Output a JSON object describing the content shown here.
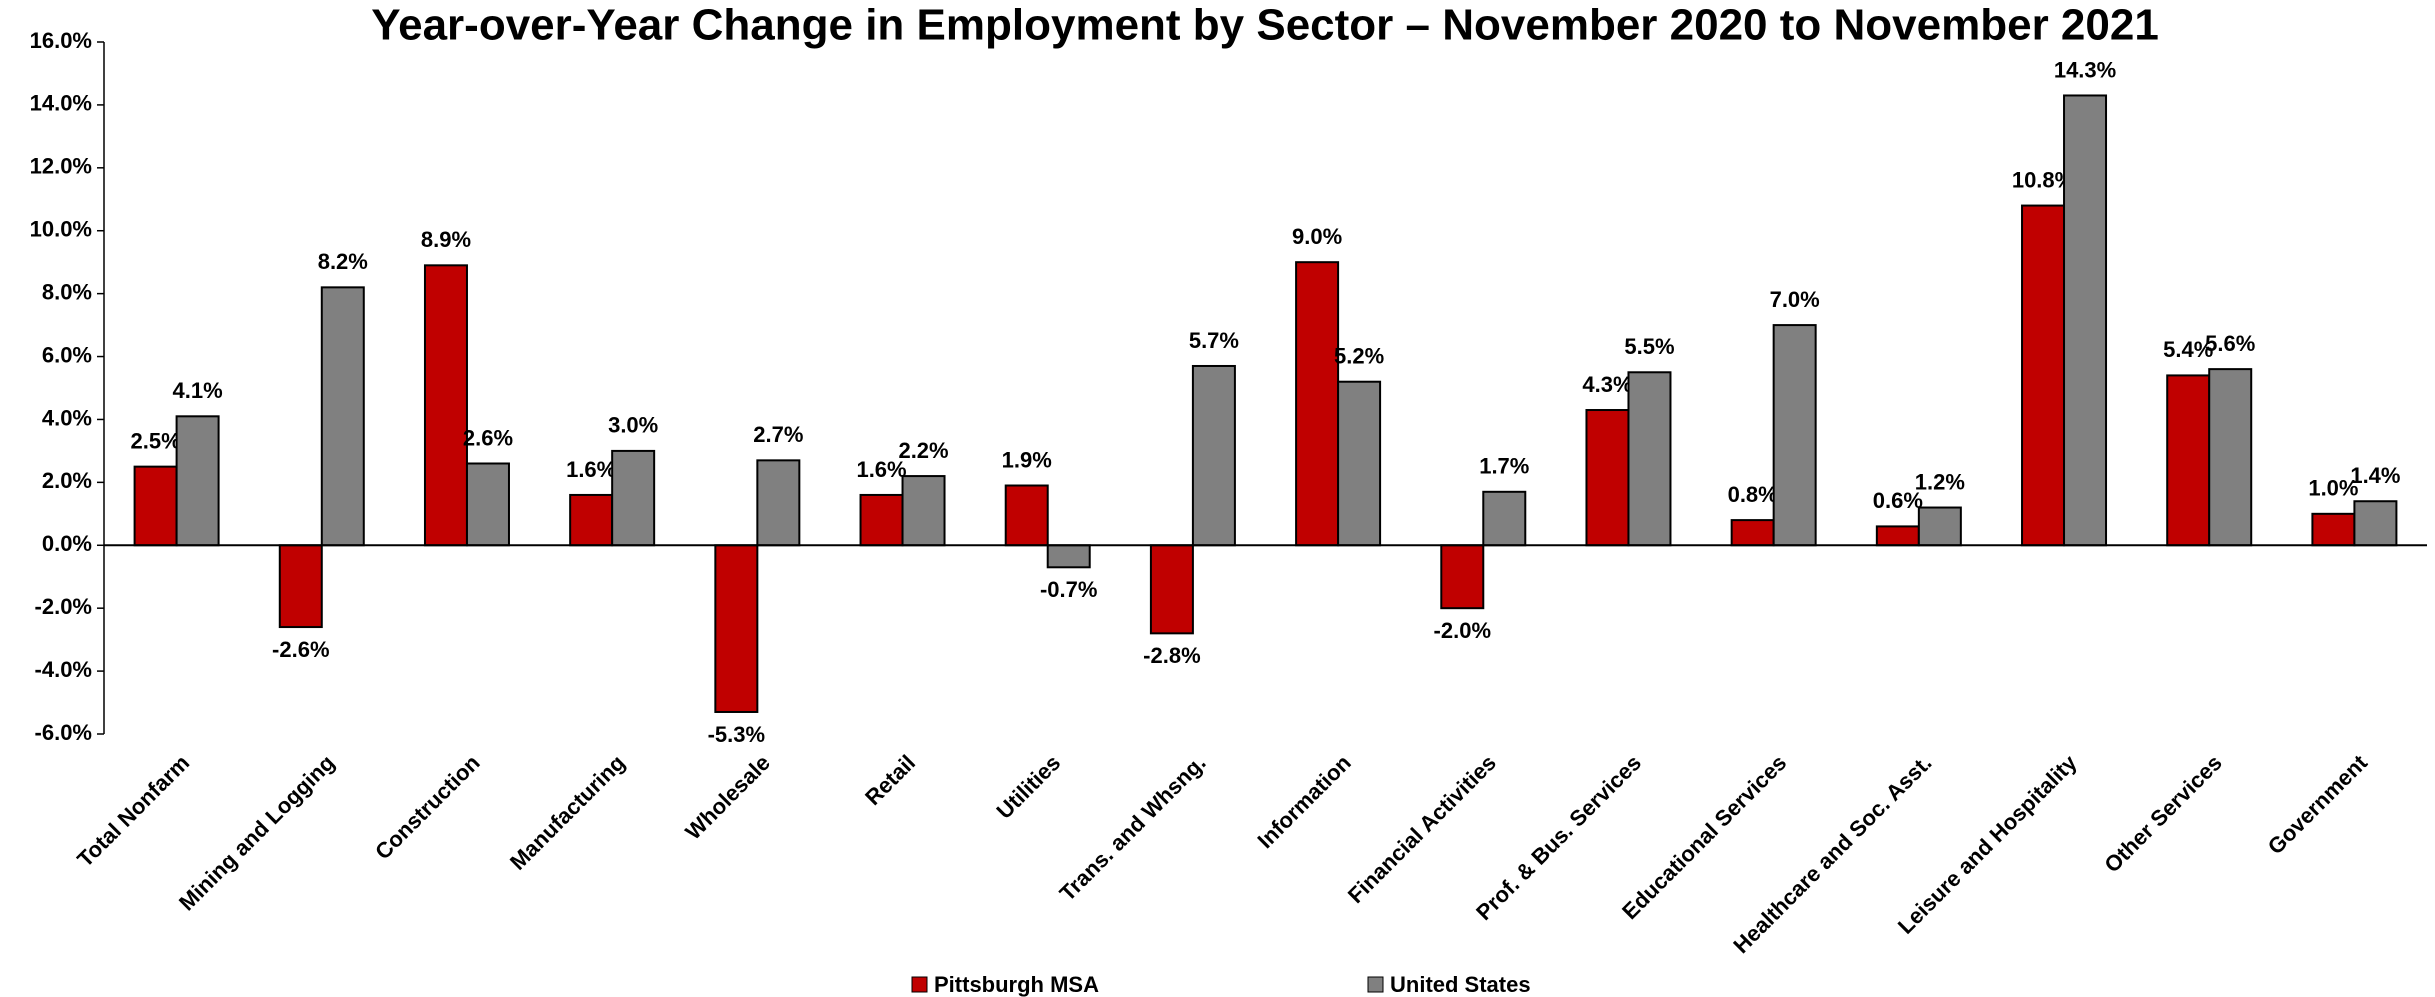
{
  "chart_data": {
    "type": "bar",
    "title": "Year-over-Year Change in Employment by Sector – November 2020 to November 2021",
    "categories": [
      "Total Nonfarm",
      "Mining and Logging",
      "Construction",
      "Manufacturing",
      "Wholesale",
      "Retail",
      "Utilities",
      "Trans. and Whsng.",
      "Information",
      "Financial Activities",
      "Prof. & Bus. Services",
      "Educational Services",
      "Healthcare and Soc. Asst.",
      "Leisure and Hospitality",
      "Other Services",
      "Government"
    ],
    "series": [
      {
        "name": "Pittsburgh MSA",
        "color": "#c00000",
        "values": [
          2.5,
          -2.6,
          8.9,
          1.6,
          -5.3,
          1.6,
          1.9,
          -2.8,
          9.0,
          -2.0,
          4.3,
          0.8,
          0.6,
          10.8,
          5.4,
          1.0
        ],
        "value_labels": [
          "2.5%",
          "-2.6%",
          "8.9%",
          "1.6%",
          "-5.3%",
          "1.6%",
          "1.9%",
          "-2.8%",
          "9.0%",
          "-2.0%",
          "4.3%",
          "0.8%",
          "0.6%",
          "10.8%",
          "5.4%",
          "1.0%"
        ]
      },
      {
        "name": "United States",
        "color": "#808080",
        "values": [
          4.1,
          8.2,
          2.6,
          3.0,
          2.7,
          2.2,
          -0.7,
          5.7,
          5.2,
          1.7,
          5.5,
          7.0,
          1.2,
          14.3,
          5.6,
          1.4
        ],
        "value_labels": [
          "4.1%",
          "8.2%",
          "2.6%",
          "3.0%",
          "2.7%",
          "2.2%",
          "-0.7%",
          "5.7%",
          "5.2%",
          "1.7%",
          "5.5%",
          "7.0%",
          "1.2%",
          "14.3%",
          "5.6%",
          "1.4%"
        ]
      }
    ],
    "ylim": [
      -6,
      16
    ],
    "yticks": [
      {
        "value": -6,
        "label": "-6.0%"
      },
      {
        "value": -4,
        "label": "-4.0%"
      },
      {
        "value": -2,
        "label": "-2.0%"
      },
      {
        "value": 0,
        "label": "0.0%"
      },
      {
        "value": 2,
        "label": "2.0%"
      },
      {
        "value": 4,
        "label": "4.0%"
      },
      {
        "value": 6,
        "label": "6.0%"
      },
      {
        "value": 8,
        "label": "8.0%"
      },
      {
        "value": 10,
        "label": "10.0%"
      },
      {
        "value": 12,
        "label": "12.0%"
      },
      {
        "value": 14,
        "label": "14.0%"
      },
      {
        "value": 16,
        "label": "16.0%"
      }
    ],
    "grid": false,
    "legend": "bottom"
  }
}
